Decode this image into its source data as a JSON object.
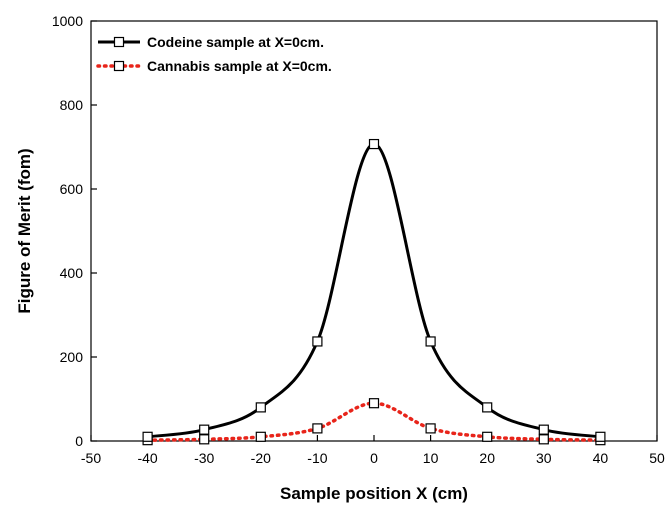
{
  "chart_data": {
    "type": "line",
    "title": "",
    "xlabel": "Sample position X (cm)",
    "ylabel": "Figure of Merit (fom)",
    "xlim": [
      -50,
      50
    ],
    "ylim": [
      0,
      1000
    ],
    "xticks": [
      "-50",
      "-40",
      "-30",
      "-20",
      "-10",
      "0",
      "10",
      "20",
      "30",
      "40",
      "50"
    ],
    "yticks": [
      "0",
      "200",
      "400",
      "600",
      "800",
      "1000"
    ],
    "grid": false,
    "legend_position": "top-left",
    "series": [
      {
        "name": "Codeine sample at X=0cm.",
        "color": "#000000",
        "line_style": "solid",
        "marker": "open-square",
        "x": [
          -40,
          -30,
          -20,
          -10,
          0,
          10,
          20,
          30,
          40
        ],
        "y": [
          10,
          27,
          80,
          237,
          707,
          237,
          80,
          27,
          10
        ]
      },
      {
        "name": "Cannabis sample at X=0cm.",
        "color": "#e8241a",
        "line_style": "dotted",
        "marker": "open-square",
        "x": [
          -40,
          -30,
          -20,
          -10,
          0,
          10,
          20,
          30,
          40
        ],
        "y": [
          2,
          4,
          10,
          30,
          90,
          30,
          10,
          4,
          2
        ]
      }
    ]
  }
}
